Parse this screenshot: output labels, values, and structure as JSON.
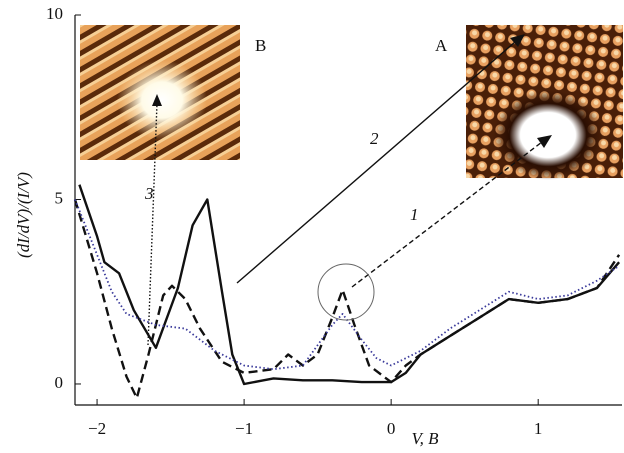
{
  "chart_data": {
    "type": "line",
    "x_label": "V, B",
    "y_label": "(dI/dV)/(I/V)",
    "xlim": [
      -2.15,
      1.57
    ],
    "ylim": [
      -0.57,
      10
    ],
    "xticks": [
      {
        "value": -2,
        "label": "−2"
      },
      {
        "value": -1,
        "label": "−1"
      },
      0,
      1
    ],
    "yticks": [
      0,
      5,
      10
    ],
    "series": [
      {
        "style": "solid",
        "color": "#111111",
        "x": [
          -2.12,
          -2.0,
          -1.95,
          -1.85,
          -1.75,
          -1.6,
          -1.45,
          -1.35,
          -1.25,
          -1.15,
          -1.08,
          -1.0,
          -0.8,
          -0.6,
          -0.4,
          -0.2,
          0.0,
          0.1,
          0.2,
          0.4,
          0.6,
          0.8,
          1.0,
          1.2,
          1.4,
          1.55
        ],
        "values": [
          5.4,
          4.0,
          3.3,
          3.0,
          2.0,
          0.98,
          2.6,
          4.3,
          5.0,
          2.5,
          0.8,
          0.0,
          0.15,
          0.1,
          0.1,
          0.05,
          0.05,
          0.3,
          0.8,
          1.3,
          1.8,
          2.3,
          2.2,
          2.3,
          2.6,
          3.3
        ]
      },
      {
        "style": "dashed",
        "color": "#111111",
        "x": [
          -2.15,
          -2.0,
          -1.9,
          -1.8,
          -1.73,
          -1.65,
          -1.55,
          -1.49,
          -1.4,
          -1.3,
          -1.15,
          -1.0,
          -0.8,
          -0.7,
          -0.6,
          -0.5,
          -0.4,
          -0.33,
          -0.25,
          -0.15,
          0.0,
          0.1,
          0.2,
          0.4,
          0.6,
          0.8,
          1.0,
          1.2,
          1.4,
          1.55
        ],
        "values": [
          5.0,
          3.0,
          1.5,
          0.2,
          -0.38,
          0.8,
          2.4,
          2.66,
          2.3,
          1.5,
          0.6,
          0.3,
          0.4,
          0.8,
          0.5,
          0.8,
          1.8,
          2.55,
          1.6,
          0.5,
          0.05,
          0.5,
          0.8,
          1.3,
          1.8,
          2.3,
          2.2,
          2.3,
          2.6,
          3.5
        ]
      },
      {
        "style": "dotted",
        "color": "#3a3a9a",
        "x": [
          -2.15,
          -2.0,
          -1.9,
          -1.8,
          -1.6,
          -1.4,
          -1.2,
          -1.0,
          -0.8,
          -0.6,
          -0.4,
          -0.33,
          -0.2,
          -0.1,
          0.0,
          0.2,
          0.4,
          0.6,
          0.8,
          1.0,
          1.2,
          1.4,
          1.55
        ],
        "values": [
          5.0,
          3.5,
          2.5,
          1.9,
          1.6,
          1.5,
          0.9,
          0.5,
          0.4,
          0.5,
          1.6,
          1.9,
          1.2,
          0.7,
          0.5,
          0.9,
          1.5,
          2.0,
          2.5,
          2.3,
          2.4,
          2.8,
          3.2
        ]
      }
    ],
    "annotations": {
      "arrow_1": "1",
      "arrow_2": "2",
      "arrow_3": "3",
      "inset_a": "A",
      "inset_b": "B"
    }
  }
}
